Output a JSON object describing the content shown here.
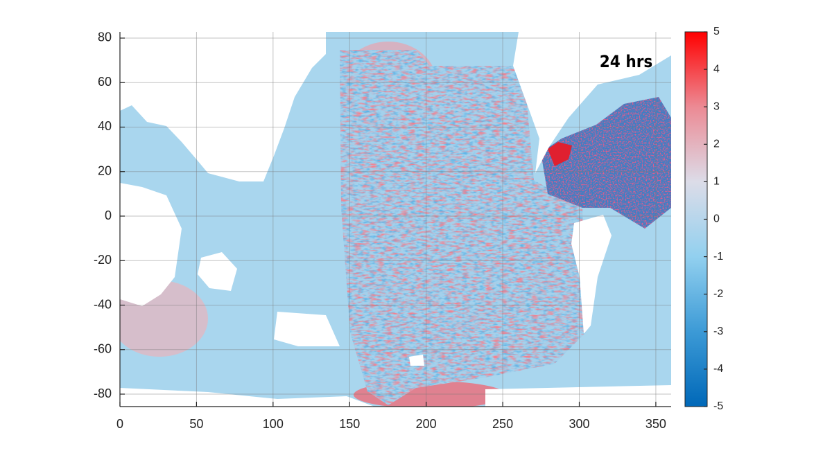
{
  "chart_data": {
    "type": "heatmap",
    "annotation": "24 hrs",
    "xlim": [
      0,
      360
    ],
    "xticks": [
      0,
      50,
      100,
      150,
      200,
      250,
      300,
      350
    ],
    "ylim": [
      -85.6,
      82.8
    ],
    "yticks": [
      -80,
      -60,
      -40,
      -20,
      0,
      20,
      40,
      60,
      80
    ],
    "grid": true,
    "clim": [
      -5,
      5
    ],
    "colorbar_ticks": [
      -5,
      -4,
      -3,
      -2,
      -1,
      0,
      1,
      2,
      3,
      4,
      5
    ],
    "colormap": [
      "#0068b8",
      "#3c9ad6",
      "#92d0ef",
      "#dcdce8",
      "#ec8a94",
      "#ff0000"
    ]
  }
}
